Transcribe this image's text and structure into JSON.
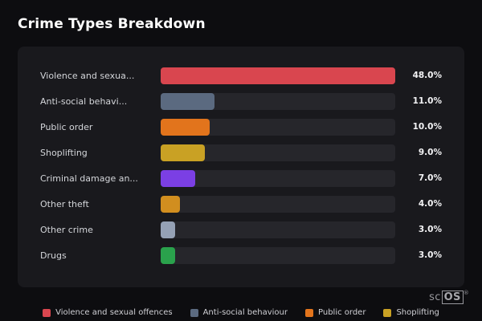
{
  "header": {
    "title": "Crime Types Breakdown"
  },
  "chart_data": {
    "type": "bar",
    "orientation": "horizontal",
    "title": "Crime Types Breakdown",
    "categories": [
      "Violence and sexua...",
      "Anti-social behavi...",
      "Public order",
      "Shoplifting",
      "Criminal damage an...",
      "Other theft",
      "Other crime",
      "Drugs"
    ],
    "values": [
      48.0,
      11.0,
      10.0,
      9.0,
      7.0,
      4.0,
      3.0,
      3.0
    ],
    "value_labels": [
      "48.0%",
      "11.0%",
      "10.0%",
      "9.0%",
      "7.0%",
      "4.0%",
      "3.0%",
      "3.0%"
    ],
    "colors": [
      "#d9464f",
      "#5b6a80",
      "#e2741c",
      "#c9a124",
      "#7b3fe4",
      "#d18e1f",
      "#95a1b5",
      "#2aa24c"
    ],
    "xlim": [
      0,
      48
    ],
    "grid": false,
    "legend_position": "bottom",
    "legend": [
      {
        "label": "Violence and sexual offences",
        "color": "#d9464f"
      },
      {
        "label": "Anti-social behaviour",
        "color": "#5b6a80"
      },
      {
        "label": "Public order",
        "color": "#e2741c"
      },
      {
        "label": "Shoplifting",
        "color": "#c9a124"
      }
    ]
  },
  "watermark": {
    "prefix": "sc",
    "boxed": "OS",
    "reg": "®"
  }
}
